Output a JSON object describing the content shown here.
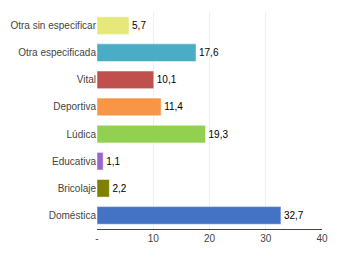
{
  "chart_data": {
    "type": "bar",
    "orientation": "horizontal",
    "categories": [
      "Doméstica",
      "Bricolaje",
      "Educativa",
      "Lúdica",
      "Deportiva",
      "Vital",
      "Otra especificada",
      "Otra sin especificar"
    ],
    "values": [
      32.7,
      2.2,
      1.1,
      19.3,
      11.4,
      10.1,
      17.6,
      5.7
    ],
    "value_labels": [
      "32,7",
      "2,2",
      "1,1",
      "19,3",
      "11,4",
      "10,1",
      "17,6",
      "5,7"
    ],
    "colors": [
      "#4472C4",
      "#808000",
      "#9966CC",
      "#92D050",
      "#F79646",
      "#C0504D",
      "#4BACC6",
      "#E6E87A"
    ],
    "xlim": [
      0,
      40
    ],
    "xticks": [
      {
        "value": 0,
        "label": "-"
      },
      10,
      20,
      30,
      40
    ],
    "grid": true,
    "data_labels": true
  }
}
